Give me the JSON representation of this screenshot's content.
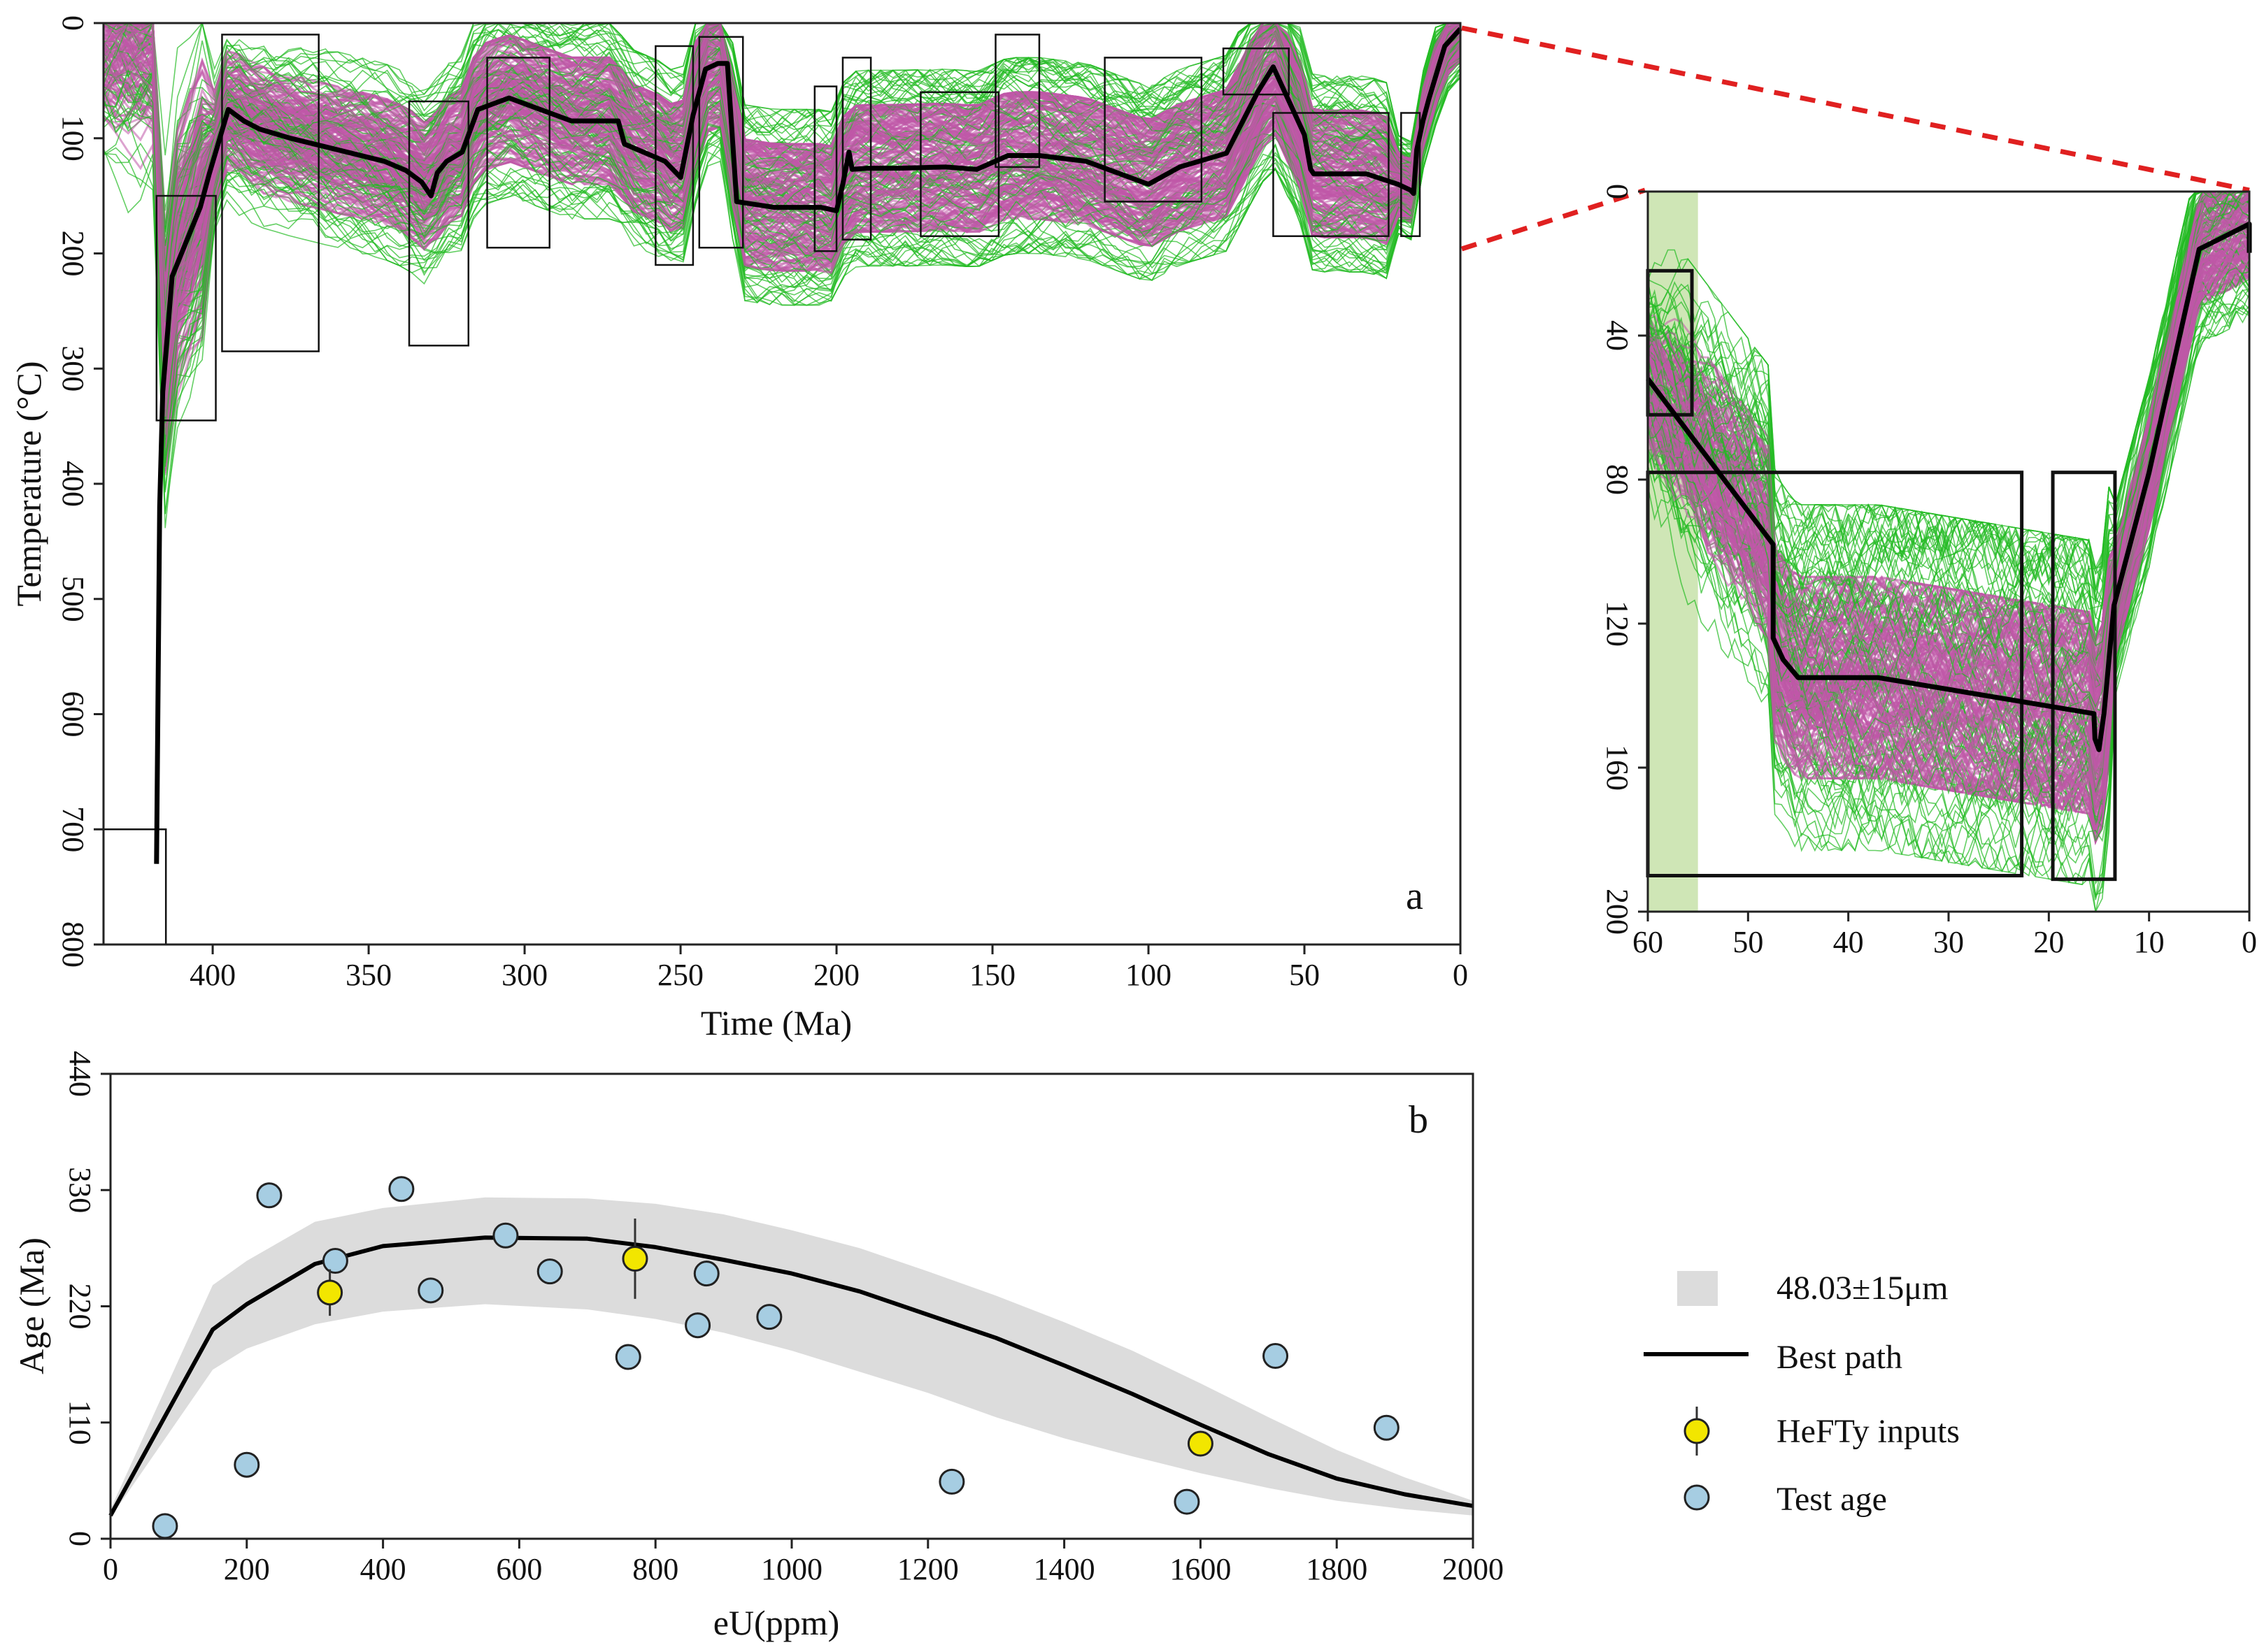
{
  "chart_data": [
    {
      "panel": "a",
      "type": "line",
      "xlabel": "Time (Ma)",
      "ylabel": "Temperature (°C)",
      "xlim": [
        435,
        0
      ],
      "ylim": [
        800,
        0
      ],
      "x_ticks": [
        400,
        350,
        300,
        250,
        200,
        150,
        100,
        50,
        0
      ],
      "y_ticks": [
        0,
        100,
        200,
        300,
        400,
        500,
        600,
        700,
        800
      ],
      "path_envelope_colors": {
        "acceptable": "#22bb22",
        "good": "#c058a8"
      },
      "constraint_boxes": [
        {
          "t": [
            418,
            399
          ],
          "T": [
            150,
            345
          ]
        },
        {
          "t": [
            397,
            366
          ],
          "T": [
            10,
            285
          ]
        },
        {
          "t": [
            337,
            318
          ],
          "T": [
            68,
            280
          ]
        },
        {
          "t": [
            312,
            292
          ],
          "T": [
            30,
            195
          ]
        },
        {
          "t": [
            258,
            246
          ],
          "T": [
            20,
            210
          ]
        },
        {
          "t": [
            244,
            230
          ],
          "T": [
            12,
            195
          ]
        },
        {
          "t": [
            207,
            200
          ],
          "T": [
            55,
            198
          ]
        },
        {
          "t": [
            198,
            189
          ],
          "T": [
            30,
            188
          ]
        },
        {
          "t": [
            173,
            148
          ],
          "T": [
            60,
            185
          ]
        },
        {
          "t": [
            149,
            135
          ],
          "T": [
            10,
            125
          ]
        },
        {
          "t": [
            114,
            83
          ],
          "T": [
            30,
            155
          ]
        },
        {
          "t": [
            76,
            55
          ],
          "T": [
            22,
            62
          ]
        },
        {
          "t": [
            60,
            23
          ],
          "T": [
            78,
            185
          ]
        },
        {
          "t": [
            19,
            13
          ],
          "T": [
            78,
            185
          ]
        },
        {
          "t": [
            435,
            415
          ],
          "T": [
            700,
            800
          ]
        }
      ],
      "best_path": {
        "time": [
          418,
          417,
          416,
          413,
          404,
          401,
          395,
          390,
          385,
          375,
          360,
          345,
          338,
          333,
          330,
          328,
          325,
          320,
          315,
          305,
          285,
          270,
          268,
          255,
          250,
          246,
          242,
          238,
          235,
          232,
          220,
          205,
          200,
          198,
          196,
          195,
          190,
          180,
          165,
          155,
          145,
          140,
          135,
          120,
          100,
          90,
          75,
          65,
          60,
          50,
          48,
          47,
          30,
          20,
          16,
          15,
          14,
          12,
          10,
          5,
          0
        ],
        "temperature": [
          730,
          420,
          320,
          220,
          160,
          130,
          75,
          85,
          92,
          100,
          110,
          120,
          128,
          138,
          150,
          130,
          120,
          112,
          75,
          65,
          85,
          85,
          105,
          120,
          134,
          80,
          40,
          35,
          35,
          155,
          160,
          160,
          163,
          140,
          112,
          127,
          126,
          126,
          125,
          127,
          115,
          115,
          115,
          120,
          140,
          125,
          113,
          60,
          38,
          97,
          127,
          131,
          131,
          140,
          145,
          148,
          110,
          85,
          65,
          20,
          5
        ]
      }
    },
    {
      "panel": "inset",
      "type": "line",
      "xlim": [
        60,
        0
      ],
      "ylim": [
        200,
        0
      ],
      "x_ticks": [
        60,
        50,
        40,
        30,
        20,
        10,
        0
      ],
      "y_ticks": [
        0,
        40,
        80,
        120,
        160,
        200
      ],
      "shaded_interval": {
        "t": [
          60,
          55
        ],
        "color": "#cfe6b6"
      },
      "path_envelope_colors": {
        "acceptable": "#22bb22",
        "good": "#c058a8"
      },
      "constraint_boxes": [
        {
          "t": [
            60,
            55.6
          ],
          "T": [
            22,
            62
          ]
        },
        {
          "t": [
            60,
            22.7
          ],
          "T": [
            78,
            190
          ]
        },
        {
          "t": [
            19.6,
            13.4
          ],
          "T": [
            78,
            191
          ]
        }
      ],
      "best_path": {
        "time": [
          60,
          47.5,
          47.5,
          46.5,
          45,
          37,
          15.5,
          15.4,
          15,
          14.5,
          13.5,
          10,
          5,
          0,
          0
        ],
        "temperature": [
          52,
          98,
          124,
          130,
          135,
          135,
          145,
          152,
          155,
          145,
          115,
          78,
          16,
          9,
          17
        ]
      }
    },
    {
      "panel": "b",
      "type": "scatter",
      "xlabel": "eU(ppm)",
      "ylabel": "Age (Ma)",
      "xlim": [
        0,
        2000
      ],
      "ylim": [
        0,
        440
      ],
      "x_ticks": [
        0,
        200,
        400,
        600,
        800,
        1000,
        1200,
        1400,
        1600,
        1800,
        2000
      ],
      "y_ticks": [
        0,
        110,
        220,
        330,
        440
      ],
      "band": {
        "name": "48.03±15μm",
        "eu": [
          0,
          150,
          200,
          300,
          400,
          550,
          700,
          800,
          900,
          1000,
          1100,
          1200,
          1300,
          1400,
          1500,
          1600,
          1700,
          1800,
          1900,
          2000
        ],
        "upper": [
          28,
          240,
          263,
          300,
          313,
          323,
          322,
          317,
          307,
          292,
          275,
          253,
          230,
          205,
          178,
          147,
          115,
          84,
          58,
          36
        ],
        "lower": [
          20,
          160,
          180,
          203,
          215,
          222,
          217,
          208,
          195,
          178,
          158,
          138,
          115,
          95,
          78,
          62,
          48,
          36,
          28,
          22
        ]
      },
      "series": [
        {
          "name": "Best path",
          "eu": [
            0,
            150,
            200,
            300,
            400,
            550,
            700,
            800,
            900,
            1000,
            1100,
            1200,
            1300,
            1400,
            1500,
            1600,
            1700,
            1800,
            1900,
            2000
          ],
          "age": [
            22,
            198,
            222,
            260,
            277,
            285,
            284,
            276,
            264,
            251,
            234,
            212,
            190,
            164,
            137,
            108,
            80,
            57,
            42,
            31
          ]
        },
        {
          "name": "HeFTy inputs",
          "points": [
            {
              "eu": 322,
              "age": 233,
              "err": 22
            },
            {
              "eu": 770,
              "age": 265,
              "err": 38
            },
            {
              "eu": 1600,
              "age": 90,
              "err": 10
            }
          ]
        },
        {
          "name": "Test age",
          "points": [
            {
              "eu": 80,
              "age": 12
            },
            {
              "eu": 200,
              "age": 70
            },
            {
              "eu": 233,
              "age": 325
            },
            {
              "eu": 330,
              "age": 263
            },
            {
              "eu": 427,
              "age": 331
            },
            {
              "eu": 470,
              "age": 235
            },
            {
              "eu": 580,
              "age": 287
            },
            {
              "eu": 645,
              "age": 253
            },
            {
              "eu": 760,
              "age": 172
            },
            {
              "eu": 862,
              "age": 202
            },
            {
              "eu": 875,
              "age": 251
            },
            {
              "eu": 967,
              "age": 210
            },
            {
              "eu": 1235,
              "age": 54
            },
            {
              "eu": 1580,
              "age": 35
            },
            {
              "eu": 1710,
              "age": 173
            },
            {
              "eu": 1873,
              "age": 105
            }
          ]
        }
      ],
      "legend": {
        "position": "right",
        "items": [
          "48.03±15μm",
          "Best path",
          "HeFTy inputs",
          "Test age"
        ]
      }
    }
  ],
  "labels": {
    "panel_a": "a",
    "panel_b": "b",
    "a_xlabel": "Time (Ma)",
    "a_ylabel": "Temperature (°C)",
    "b_xlabel": "eU(ppm)",
    "b_ylabel": "Age (Ma)",
    "legend_band": "48.03±15μm",
    "legend_best": "Best path",
    "legend_hefty": "HeFTy inputs",
    "legend_test": "Test age"
  },
  "colors": {
    "green_paths": "#22bb22",
    "magenta_paths": "#c058a8",
    "band": "#dcdcdc",
    "hefty_fill": "#f2e600",
    "test_fill": "#a6cde2",
    "zoom_line": "#e02020",
    "shade_interval": "#cfe6b6"
  }
}
